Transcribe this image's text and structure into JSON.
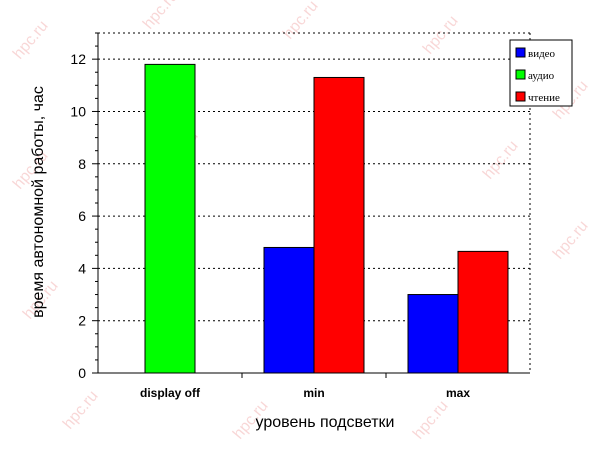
{
  "chart_data": {
    "type": "bar",
    "categories": [
      "display off",
      "min",
      "max"
    ],
    "series": [
      {
        "name": "видео",
        "color": "#0000ff",
        "values": [
          null,
          4.8,
          3.0
        ]
      },
      {
        "name": "аудио",
        "color": "#00ff00",
        "values": [
          11.8,
          null,
          null
        ]
      },
      {
        "name": "чтение",
        "color": "#ff0000",
        "values": [
          null,
          11.3,
          4.65
        ]
      }
    ],
    "xlabel": "уровень подсветки",
    "ylabel": "время автономной работы, час",
    "ylim": [
      0,
      13
    ],
    "yticks": [
      0,
      2,
      4,
      6,
      8,
      10,
      12
    ],
    "grid": true,
    "legend_position": "top-right"
  },
  "watermark_text": "hpc.ru"
}
